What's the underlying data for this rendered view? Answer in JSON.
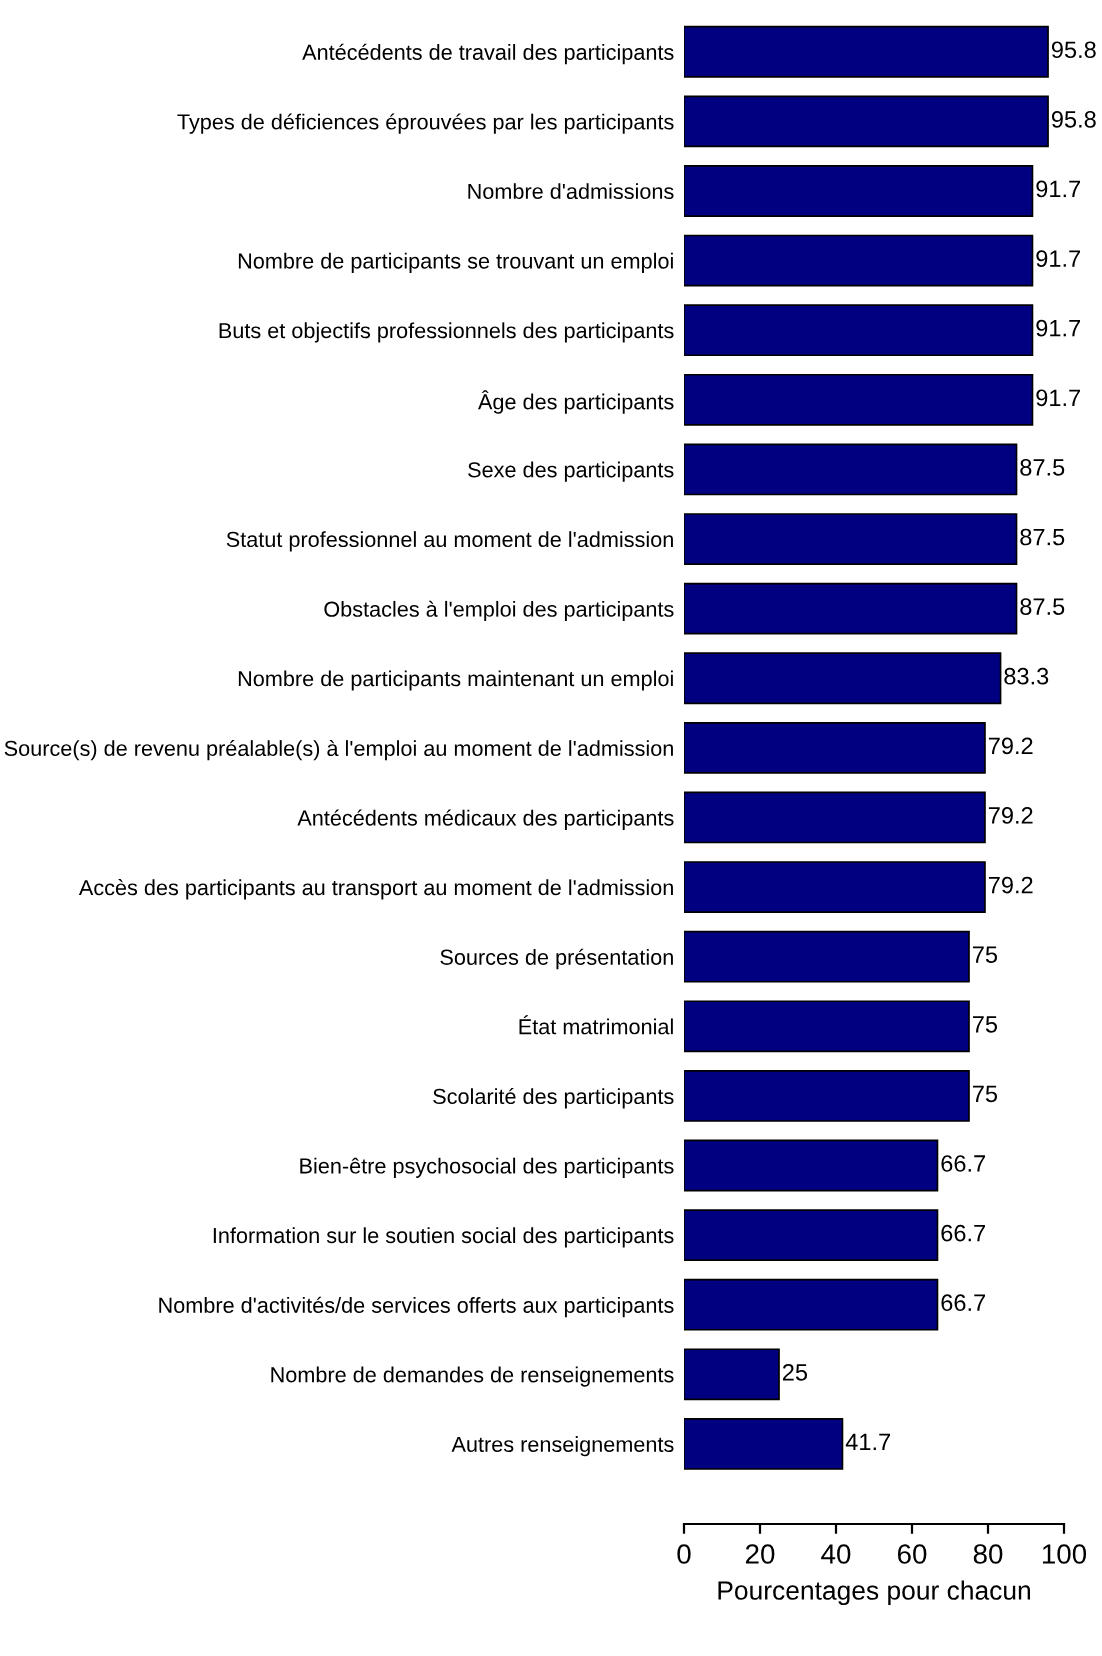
{
  "chart_data": {
    "type": "bar",
    "orientation": "horizontal",
    "xlabel": "Pourcentages pour chacun",
    "categories": [
      "Antécédents de travail des participants",
      "Types de déficiences éprouvées par les participants",
      "Nombre d'admissions",
      "Nombre de participants se trouvant un emploi",
      "Buts et objectifs professionnels des participants",
      "Âge des participants",
      "Sexe des participants",
      "Statut professionnel au moment de l'admission",
      "Obstacles à l'emploi des participants",
      "Nombre de participants maintenant un emploi",
      "Source(s) de revenu préalable(s) à l'emploi au moment de l'admission",
      "Antécédents médicaux des participants",
      "Accès des participants au transport au moment de l'admission",
      "Sources de présentation",
      "État matrimonial",
      "Scolarité des participants",
      "Bien-être psychosocial des participants",
      "Information sur le soutien social des participants",
      "Nombre d'activités/de services offerts aux participants",
      "Nombre de demandes de renseignements",
      "Autres renseignements"
    ],
    "values": [
      95.8,
      95.8,
      91.7,
      91.7,
      91.7,
      91.7,
      87.5,
      87.5,
      87.5,
      83.3,
      79.2,
      79.2,
      79.2,
      75,
      75,
      75,
      66.7,
      66.7,
      66.7,
      25,
      41.7
    ],
    "color": "#000080",
    "data_labels": true,
    "xlim": [
      0,
      100
    ],
    "xticks": [
      0,
      20,
      40,
      60,
      80,
      100
    ],
    "grid": false,
    "legend": false
  }
}
